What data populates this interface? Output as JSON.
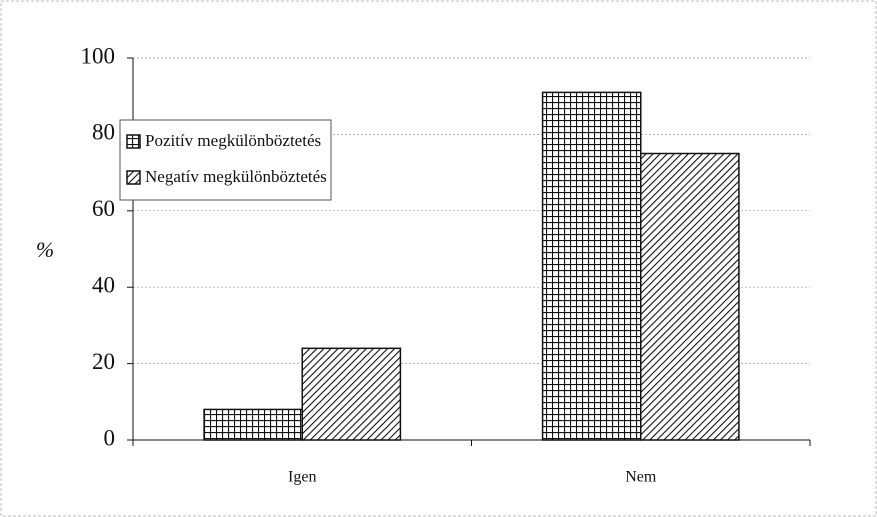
{
  "chart_data": {
    "type": "bar",
    "y_label": "%",
    "categories": [
      "Igen",
      "Nem"
    ],
    "series": [
      {
        "name": "Pozitív megkülönböztetés",
        "color": "#111111",
        "values": [
          8,
          91
        ]
      },
      {
        "name": "Negatív megkülönböztetés",
        "color": "#111111",
        "values": [
          24,
          75
        ]
      }
    ],
    "ylim": [
      0,
      100
    ],
    "yticks": [
      0,
      20,
      40,
      60,
      80,
      100
    ],
    "grid": true,
    "legend": "upper left"
  }
}
